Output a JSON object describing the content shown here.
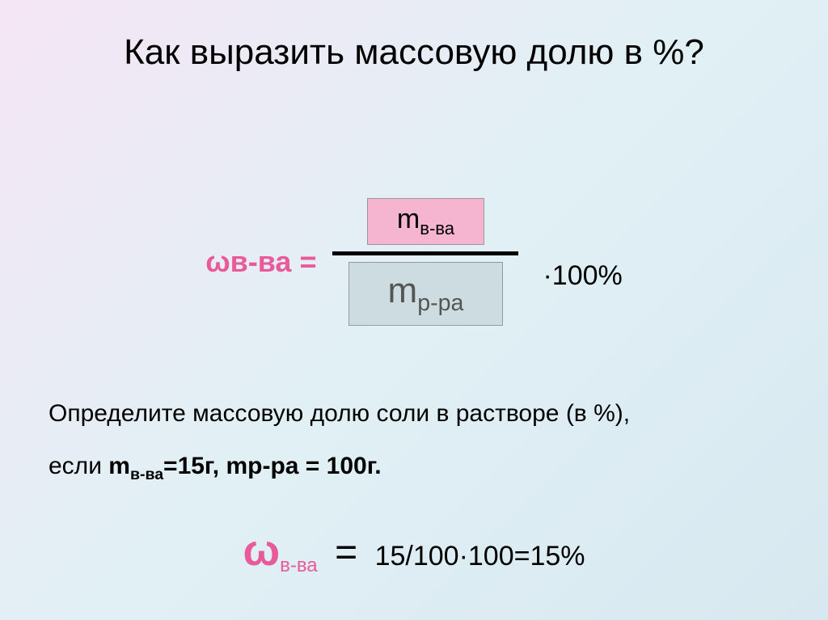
{
  "title": "Как выразить массовую долю в %?",
  "formula": {
    "left_symbol": "ω",
    "left_sub": "в-ва",
    "left_eq": " = ",
    "numerator_m": "m",
    "numerator_sub": "в-ва",
    "denominator_m": "m",
    "denominator_sub": "р-ра",
    "suffix": "·100%",
    "numerator_bg": "#f5b5d0",
    "denominator_bg": "#cddce0",
    "omega_color": "#e85a9a"
  },
  "problem": {
    "line1": "Определите массовую долю соли в растворе (в %),",
    "line2_prefix": "если ",
    "line2_m1": "m",
    "line2_m1_sub": "в-ва",
    "line2_m1_val": "=15г, mр-ра = 100г."
  },
  "answer": {
    "omega": "ω",
    "omega_sub": "в-ва",
    "eq": "=",
    "calc": " 15/100·100=15%"
  },
  "style": {
    "title_fontsize": 44,
    "body_fontsize": 30,
    "bg_gradient_start": "#f5e6f5",
    "bg_gradient_mid": "#e0f0f5",
    "bg_gradient_end": "#d8e8f0"
  }
}
